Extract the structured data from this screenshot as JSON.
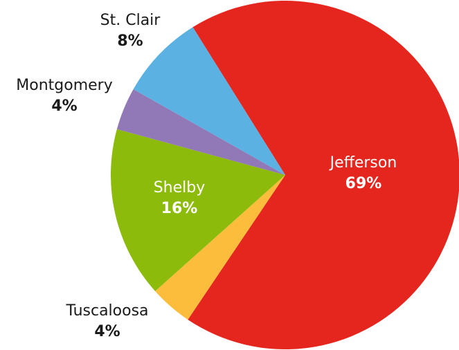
{
  "chart_data": {
    "type": "pie",
    "categories": [
      "Jefferson",
      "Tuscaloosa",
      "Shelby",
      "Montgomery",
      "St. Clair"
    ],
    "values": [
      69,
      4,
      16,
      4,
      8
    ],
    "value_labels": [
      "69%",
      "4%",
      "16%",
      "4%",
      "8%"
    ],
    "colors": [
      "#e5261e",
      "#fdbd3c",
      "#8dbb0c",
      "#9079b6",
      "#5bb2e2"
    ]
  }
}
